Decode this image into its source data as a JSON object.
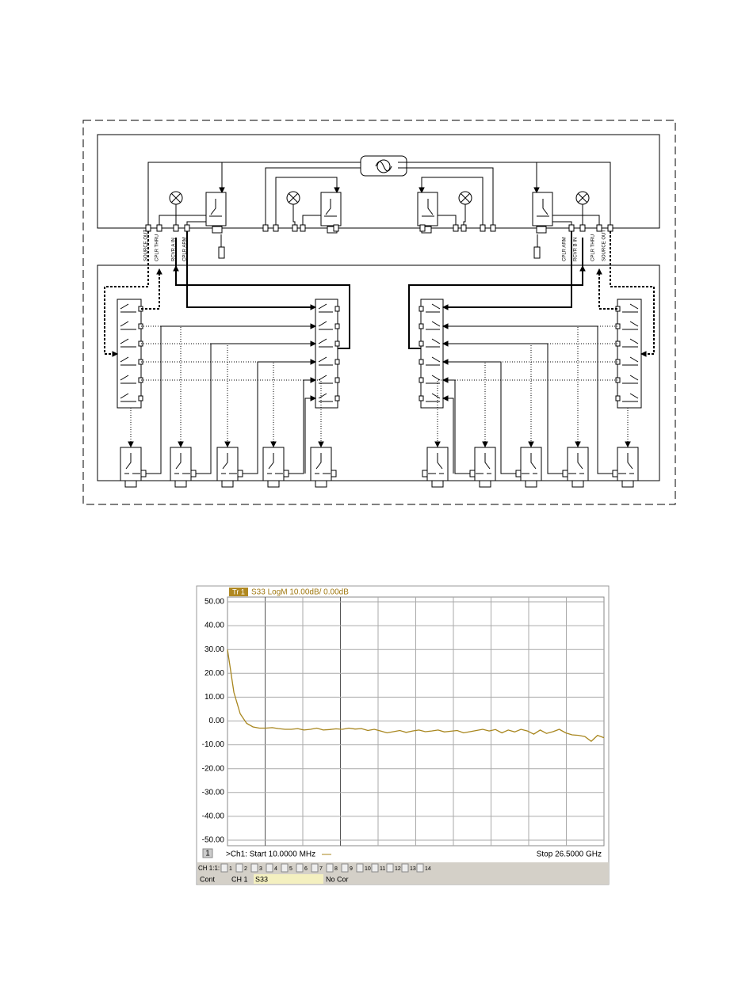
{
  "diagram": {
    "port_labels_left": [
      "SOURCE OUT",
      "CPLR THRU",
      "RCVR A IN",
      "CPLR ARM"
    ],
    "port_labels_right": [
      "CPLR ARM",
      "RCVR B IN",
      "CPLR THRU",
      "SOURCE OUT"
    ]
  },
  "screenshot": {
    "trace_tag": "Tr 1",
    "trace_header": "S33 LogM 10.00dB/ 0.00dB",
    "channel_number": "1",
    "start_label": ">Ch1: Start 10.0000 MHz",
    "stop_label": "Stop 26.5000 GHz",
    "channel_bar_label": "CH 1:1:",
    "channel_buttons": [
      "1",
      "2",
      "3",
      "4",
      "5",
      "6",
      "7",
      "8",
      "9",
      "10",
      "11",
      "12",
      "13",
      "14"
    ],
    "status": [
      "Cont",
      "CH 1",
      "S33",
      "No Cor"
    ]
  },
  "chart_data": {
    "type": "line",
    "color": "#a8861e",
    "ylim": [
      -50,
      50
    ],
    "grid": true,
    "yticks": [
      {
        "value": 50,
        "label": "50.00"
      },
      {
        "value": 40,
        "label": "40.00"
      },
      {
        "value": 30,
        "label": "30.00"
      },
      {
        "value": 20,
        "label": "20.00"
      },
      {
        "value": 10,
        "label": "10.00"
      },
      {
        "value": 0,
        "label": "0.00"
      },
      {
        "value": -10,
        "label": "-10.00"
      },
      {
        "value": -20,
        "label": "-20.00"
      },
      {
        "value": -30,
        "label": "-30.00"
      },
      {
        "value": -40,
        "label": "-40.00"
      },
      {
        "value": -50,
        "label": "-50.00"
      }
    ],
    "values": [
      30,
      12,
      3,
      -1,
      -2.5,
      -3,
      -3,
      -2.8,
      -3.2,
      -3.5,
      -3.5,
      -3.2,
      -3.8,
      -3.5,
      -3,
      -3.8,
      -3.6,
      -3.3,
      -3.5,
      -3,
      -3.4,
      -3.2,
      -4,
      -3.5,
      -4.2,
      -5,
      -4.5,
      -4,
      -4.8,
      -4.2,
      -3.8,
      -4.5,
      -4.2,
      -3.8,
      -4.6,
      -4.3,
      -4,
      -5,
      -4.5,
      -4,
      -3.5,
      -4.2,
      -3.6,
      -5,
      -3.8,
      -4.6,
      -3.5,
      -4.2,
      -5.5,
      -3.8,
      -5.2,
      -4.5,
      -3.5,
      -5,
      -5.8,
      -6,
      -6.5,
      -8.5,
      -6,
      -7
    ]
  }
}
